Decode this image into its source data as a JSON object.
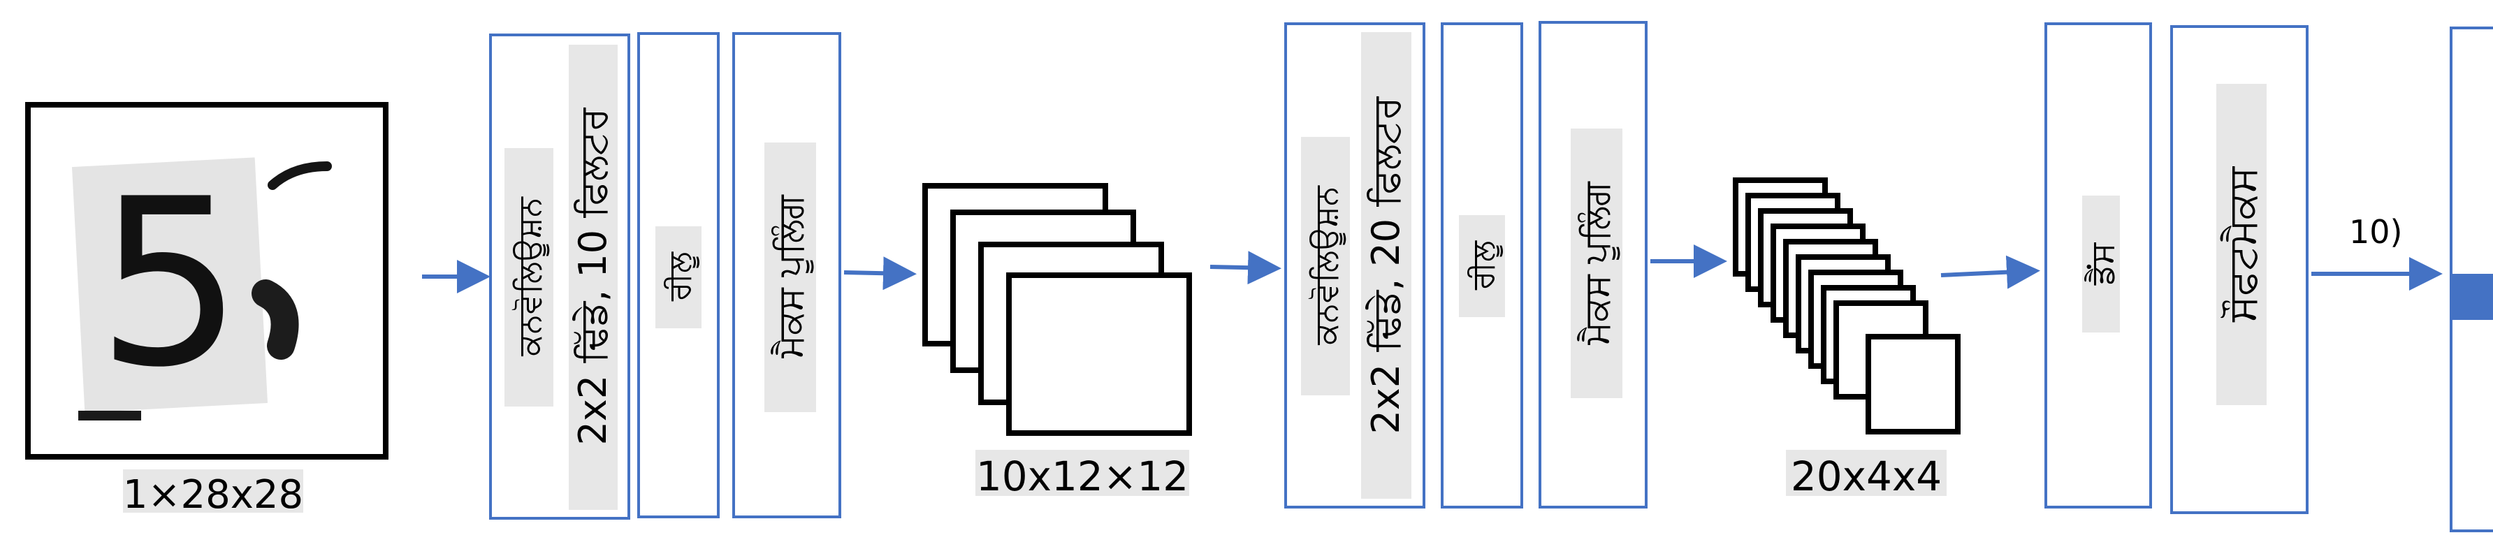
{
  "input": {
    "glyph": "5",
    "shape_label": "1×28x28"
  },
  "conv1": {
    "name": "ਕਨਵੋਲਿਊਸ਼ਨ",
    "detail": "2x2 ਢਿੱਡੇ, 10 ਫਿਲਟਰ"
  },
  "relu1": {
    "name": "ਰੀਲੂ"
  },
  "pool1": {
    "name": "ਮੈਕਸ ਪੂਲਿੰਗ"
  },
  "fmap1": {
    "shape_label": "10x12×12"
  },
  "conv2": {
    "name": "ਕਨਵੋਲਿਊਸ਼ਨ",
    "detail": "2x2 ਢਿੱਡੇ, 20 ਫਿਲਟਰ"
  },
  "relu2": {
    "name": "ਰੀਲੂ"
  },
  "pool2": {
    "name": "ਮੈਕਸ ਪੂਲਿੰਗ"
  },
  "fmap2": {
    "shape_label": "20x4x4"
  },
  "dense": {
    "name": "ਡੈਂਸ"
  },
  "softmax": {
    "name": "ਸੌਫਟਮੈਕਸ"
  },
  "output": {
    "shape_label": "10)"
  },
  "colors": {
    "box_border": "#4472c4",
    "arrow": "#4472c4",
    "label_bg": "#e7e7e7",
    "output_fill": "#4472c4",
    "stroke": "#000000"
  }
}
